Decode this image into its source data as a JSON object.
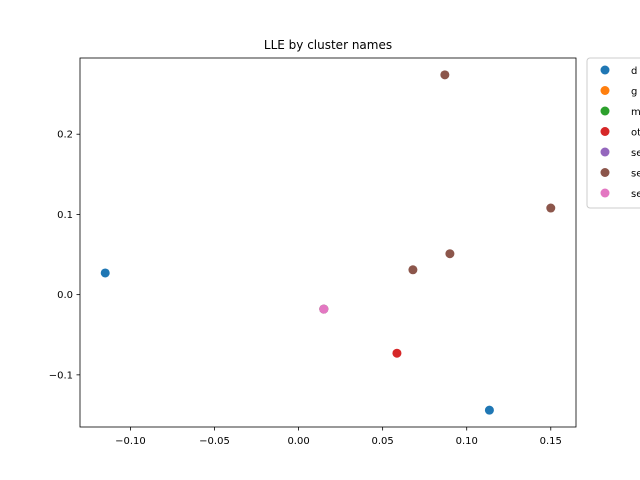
{
  "chart_data": {
    "type": "scatter",
    "title": "LLE by cluster names",
    "xlabel": "",
    "ylabel": "",
    "xlim": [
      -0.13,
      0.165
    ],
    "ylim": [
      -0.165,
      0.295
    ],
    "xticks": [
      -0.1,
      -0.05,
      0.0,
      0.05,
      0.1,
      0.15
    ],
    "xtick_labels": [
      "−0.10",
      "−0.05",
      "0.00",
      "0.05",
      "0.10",
      "0.15"
    ],
    "yticks": [
      -0.1,
      0.0,
      0.1,
      0.2
    ],
    "ytick_labels": [
      "−0.1",
      "0.0",
      "0.1",
      "0.2"
    ],
    "grid": false,
    "legend_position": "outside-right",
    "series": [
      {
        "name": "d",
        "color": "#1f77b4",
        "points": [
          [
            -0.115,
            0.027
          ],
          [
            0.1135,
            -0.144
          ]
        ]
      },
      {
        "name": "g",
        "color": "#ff7f0e",
        "points": [
          [
            0.015,
            -0.018
          ]
        ]
      },
      {
        "name": "m",
        "color": "#2ca02c",
        "points": [
          [
            0.015,
            -0.018
          ]
        ]
      },
      {
        "name": "ot",
        "color": "#d62728",
        "points": [
          [
            0.0585,
            -0.073
          ]
        ]
      },
      {
        "name": "se",
        "color": "#9467bd",
        "points": [
          [
            0.015,
            -0.018
          ]
        ]
      },
      {
        "name": "se",
        "color": "#8c564b",
        "points": [
          [
            0.087,
            0.274
          ],
          [
            0.15,
            0.108
          ],
          [
            0.09,
            0.051
          ],
          [
            0.068,
            0.031
          ]
        ]
      },
      {
        "name": "se",
        "color": "#e377c2",
        "points": [
          [
            0.015,
            -0.018
          ]
        ]
      }
    ]
  }
}
